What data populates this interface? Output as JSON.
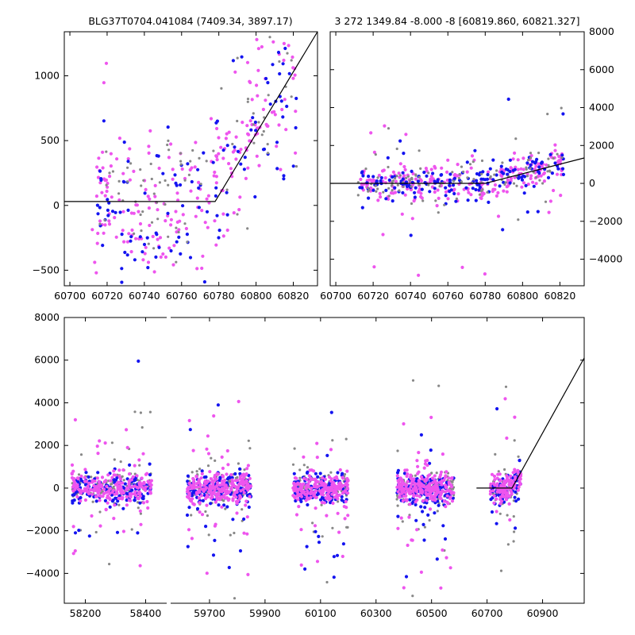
{
  "colors": {
    "primary": "#ee55ee",
    "secondary": "#1414f0",
    "reference": "#888888",
    "model": "#000000"
  },
  "chart_data": [
    {
      "id": "top-left",
      "type": "scatter",
      "title": "BLG37T0704.041084 (7409.34, 3897.17)",
      "xlim": [
        60697,
        60833
      ],
      "ylim": [
        -620,
        1340
      ],
      "xticks": [
        60700,
        60720,
        60740,
        60760,
        60780,
        60800,
        60820
      ],
      "yticks": [
        -500,
        0,
        500,
        1000
      ],
      "ytick_side": "left",
      "model_line": [
        [
          60697,
          30
        ],
        [
          60778,
          30
        ],
        [
          60833,
          1340
        ]
      ],
      "series": [
        {
          "name": "primary",
          "color": "#ee55ee",
          "n": 230,
          "x": [
            60712,
            60822
          ],
          "seed": 11
        },
        {
          "name": "secondary",
          "color": "#1414f0",
          "n": 120,
          "x": [
            60712,
            60822
          ],
          "seed": 23
        },
        {
          "name": "reference",
          "color": "#888888",
          "n": 80,
          "x": [
            60712,
            60822
          ],
          "seed": 37
        }
      ]
    },
    {
      "id": "top-right",
      "type": "scatter",
      "title": "3 272 1349.84 -8.000 -8 [60819.860, 60821.327]",
      "xlim": [
        60697,
        60833
      ],
      "ylim": [
        -5400,
        8000
      ],
      "xticks": [
        60700,
        60720,
        60740,
        60760,
        60780,
        60800,
        60820
      ],
      "yticks": [
        -4000,
        -2000,
        0,
        2000,
        4000,
        6000,
        8000
      ],
      "ytick_side": "right",
      "model_line": [
        [
          60697,
          0
        ],
        [
          60780,
          0
        ],
        [
          60833,
          1340
        ]
      ],
      "series": [
        {
          "name": "primary",
          "color": "#ee55ee",
          "n": 260,
          "x": [
            60712,
            60822
          ],
          "seed": 41
        },
        {
          "name": "secondary",
          "color": "#1414f0",
          "n": 170,
          "x": [
            60712,
            60822
          ],
          "seed": 53
        },
        {
          "name": "reference",
          "color": "#888888",
          "n": 110,
          "x": [
            60712,
            60822
          ],
          "seed": 67
        }
      ]
    },
    {
      "id": "bottom",
      "type": "scatter",
      "title": "",
      "ylim": [
        -5400,
        8000
      ],
      "yticks": [
        -4000,
        -2000,
        0,
        2000,
        4000,
        6000,
        8000
      ],
      "ytick_side": "left",
      "segments": [
        {
          "xlim": [
            58130,
            58470
          ],
          "xticks": [
            58200,
            58400
          ]
        },
        {
          "xlim": [
            59560,
            61050
          ],
          "xticks": [
            59700,
            59900,
            60100,
            60300,
            60500,
            60700,
            60900
          ]
        }
      ],
      "model_line": [
        [
          60662,
          0
        ],
        [
          60790,
          0
        ],
        [
          61050,
          6100
        ]
      ],
      "seasons": [
        {
          "x": [
            58155,
            58420
          ],
          "n": 500
        },
        {
          "x": [
            59620,
            59850
          ],
          "n": 520
        },
        {
          "x": [
            60000,
            60200
          ],
          "n": 480
        },
        {
          "x": [
            60375,
            60580
          ],
          "n": 520
        },
        {
          "x": [
            60712,
            60822
          ],
          "n": 260
        }
      ]
    }
  ]
}
